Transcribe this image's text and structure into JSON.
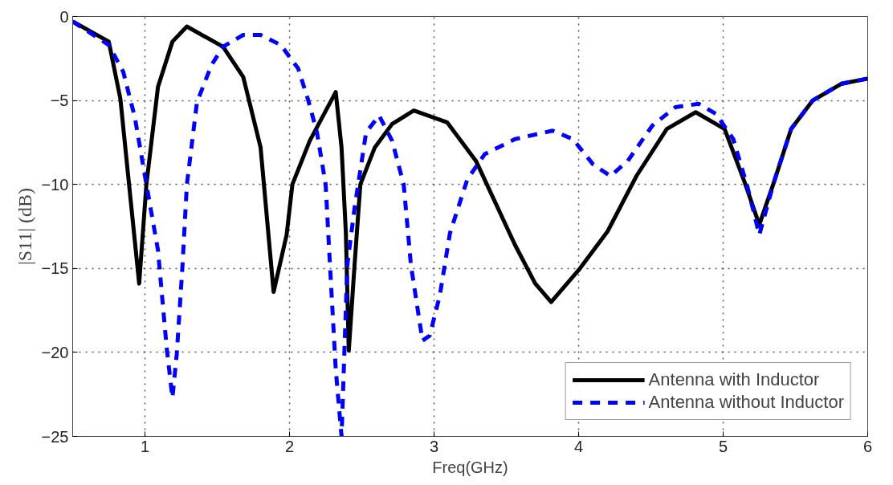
{
  "chart_data": {
    "type": "line",
    "xlabel": "Freq(GHz)",
    "ylabel": "|S11| (dB)",
    "xlim": [
      0.5,
      6
    ],
    "ylim": [
      -25,
      0
    ],
    "xticks": [
      1,
      2,
      3,
      4,
      5,
      6
    ],
    "yticks": [
      -25,
      -20,
      -15,
      -10,
      -5,
      0
    ],
    "grid": true,
    "legend": "bottom right",
    "series": [
      {
        "name": "Antenna with Inductor",
        "color": "#000000",
        "line_style": "solid",
        "x": [
          0.5,
          0.75,
          0.83,
          0.89,
          0.96,
          1.01,
          1.09,
          1.19,
          1.29,
          1.54,
          1.68,
          1.8,
          1.89,
          1.98,
          2.02,
          2.14,
          2.32,
          2.36,
          2.39,
          2.41,
          2.45,
          2.49,
          2.59,
          2.71,
          2.86,
          3.09,
          3.29,
          3.56,
          3.7,
          3.81,
          4.0,
          4.2,
          4.4,
          4.61,
          4.81,
          5.01,
          5.15,
          5.25,
          5.35,
          5.47,
          5.62,
          5.82,
          6.0
        ],
        "values": [
          -0.3,
          -1.5,
          -4.9,
          -10.0,
          -15.9,
          -10.0,
          -4.2,
          -1.5,
          -0.6,
          -1.8,
          -3.6,
          -7.8,
          -16.4,
          -13.0,
          -10.0,
          -7.4,
          -4.5,
          -7.8,
          -12.9,
          -19.9,
          -14.8,
          -10.0,
          -7.8,
          -6.4,
          -5.6,
          -6.3,
          -8.6,
          -13.6,
          -15.9,
          -17.0,
          -15.1,
          -12.8,
          -9.5,
          -6.7,
          -5.7,
          -6.7,
          -9.9,
          -12.4,
          -9.9,
          -6.7,
          -5.0,
          -4.0,
          -3.7
        ]
      },
      {
        "name": "Antenna without Inductor",
        "color": "#0000ff",
        "line_style": "dashed",
        "x": [
          0.5,
          0.75,
          0.85,
          0.93,
          1.01,
          1.09,
          1.15,
          1.19,
          1.22,
          1.26,
          1.29,
          1.36,
          1.46,
          1.54,
          1.68,
          1.8,
          1.94,
          2.06,
          2.13,
          2.19,
          2.25,
          2.28,
          2.32,
          2.36,
          2.4,
          2.45,
          2.53,
          2.62,
          2.71,
          2.79,
          2.84,
          2.92,
          2.97,
          3.04,
          3.11,
          3.23,
          3.35,
          3.56,
          3.82,
          3.96,
          4.1,
          4.22,
          4.34,
          4.51,
          4.67,
          4.83,
          4.95,
          5.07,
          5.17,
          5.25,
          5.35,
          5.47,
          5.62,
          5.82,
          6.0
        ],
        "values": [
          -0.3,
          -1.7,
          -3.3,
          -6.0,
          -10.0,
          -13.9,
          -19.7,
          -22.7,
          -20.1,
          -14.8,
          -10.0,
          -5.1,
          -2.9,
          -1.8,
          -1.1,
          -1.1,
          -1.7,
          -3.1,
          -5.0,
          -6.9,
          -10.0,
          -14.8,
          -21.0,
          -25.0,
          -14.8,
          -11.4,
          -6.9,
          -5.9,
          -7.4,
          -10.0,
          -14.8,
          -19.3,
          -19.0,
          -16.6,
          -12.9,
          -9.7,
          -8.2,
          -7.3,
          -6.8,
          -7.3,
          -8.8,
          -9.5,
          -8.6,
          -6.5,
          -5.4,
          -5.2,
          -5.8,
          -7.3,
          -10.2,
          -13.0,
          -9.9,
          -6.7,
          -5.0,
          -4.0,
          -3.7
        ]
      }
    ]
  }
}
